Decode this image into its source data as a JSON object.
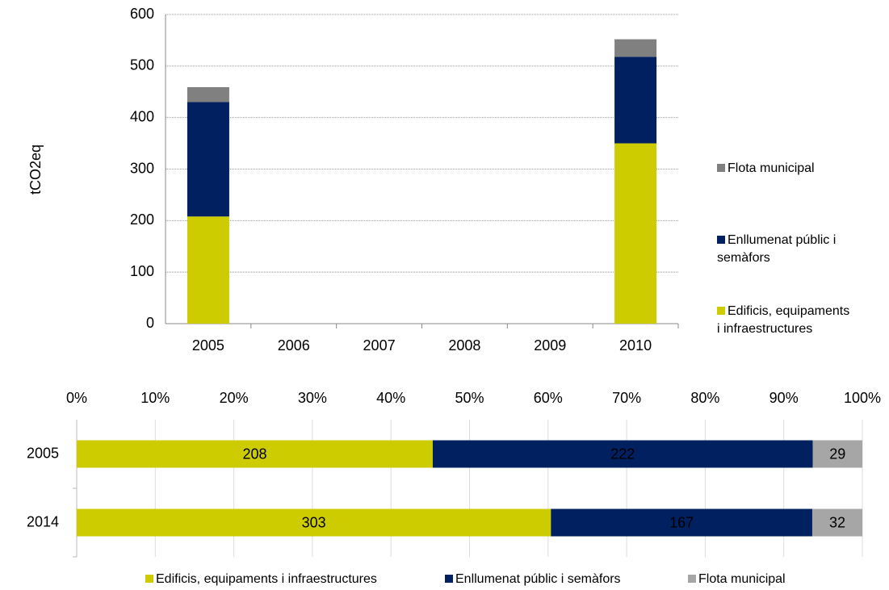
{
  "chart_data": [
    {
      "type": "stacked_bar",
      "y_label": "tCO2eq",
      "categories": [
        "2005",
        "2006",
        "2007",
        "2008",
        "2009",
        "2010"
      ],
      "series": [
        {
          "name": "Edificis, equipaments i infraestructures",
          "color": "#cccc00",
          "values": [
            208,
            null,
            null,
            null,
            null,
            350
          ]
        },
        {
          "name": "Enllumenat públic i semàfors",
          "color": "#002060",
          "values": [
            222,
            null,
            null,
            null,
            null,
            168
          ]
        },
        {
          "name": "Flota municipal",
          "color": "#808080",
          "values": [
            29,
            null,
            null,
            null,
            null,
            34
          ]
        }
      ],
      "ylim": [
        0,
        600
      ],
      "yticks": [
        0,
        100,
        200,
        300,
        400,
        500,
        600
      ],
      "grid": true,
      "legend": "right"
    },
    {
      "type": "percent_stacked_hbar",
      "categories": [
        "2005",
        "2014"
      ],
      "series": [
        {
          "name": "Edificis, equipaments i infraestructures",
          "color": "#cccc00",
          "values": [
            208,
            303
          ]
        },
        {
          "name": "Enllumenat públic i semàfors",
          "color": "#002060",
          "values": [
            222,
            167
          ]
        },
        {
          "name": "Flota municipal",
          "color": "#a6a6a6",
          "values": [
            29,
            32
          ]
        }
      ],
      "xlim": [
        0,
        100
      ],
      "xticks": [
        {
          "value": 0,
          "label": "0%"
        },
        {
          "value": 10,
          "label": "10%"
        },
        {
          "value": 20,
          "label": "20%"
        },
        {
          "value": 30,
          "label": "30%"
        },
        {
          "value": 40,
          "label": "40%"
        },
        {
          "value": 50,
          "label": "50%"
        },
        {
          "value": 60,
          "label": "60%"
        },
        {
          "value": 70,
          "label": "70%"
        },
        {
          "value": 80,
          "label": "80%"
        },
        {
          "value": 90,
          "label": "90%"
        },
        {
          "value": 100,
          "label": "100%"
        }
      ],
      "grid": true,
      "legend": "bottom"
    }
  ]
}
